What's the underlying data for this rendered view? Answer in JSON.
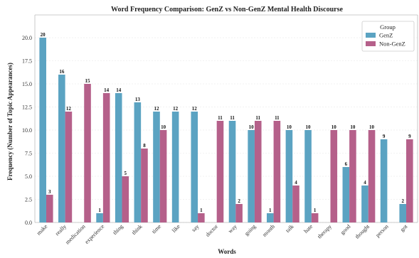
{
  "chart_data": {
    "type": "bar",
    "title": "Word Frequency Comparison: GenZ vs Non-GenZ Mental Health Discourse",
    "xlabel": "Words",
    "ylabel": "Frequency (Number of Topic Appearances)",
    "ylim": [
      0,
      22
    ],
    "yticks": [
      "0.0",
      "2.5",
      "5.0",
      "7.5",
      "10.0",
      "12.5",
      "15.0",
      "17.5",
      "20.0"
    ],
    "grid": true,
    "legend": {
      "title": "Group",
      "placement": "top-right"
    },
    "categories": [
      "make",
      "really",
      "medication",
      "experience",
      "thing",
      "think",
      "time",
      "like",
      "say",
      "doctor",
      "way",
      "going",
      "month",
      "talk",
      "hate",
      "therapy",
      "good",
      "thought",
      "person",
      "got"
    ],
    "series": [
      {
        "name": "GenZ",
        "color": "#5ba3c2",
        "values": [
          20,
          16,
          0,
          1,
          14,
          13,
          12,
          12,
          12,
          0,
          11,
          10,
          1,
          10,
          10,
          0,
          6,
          4,
          9,
          2
        ]
      },
      {
        "name": "Non-GenZ",
        "color": "#b5608a",
        "values": [
          3,
          12,
          15,
          14,
          5,
          8,
          10,
          0,
          1,
          11,
          2,
          11,
          11,
          4,
          1,
          10,
          10,
          10,
          0,
          9
        ]
      }
    ]
  }
}
